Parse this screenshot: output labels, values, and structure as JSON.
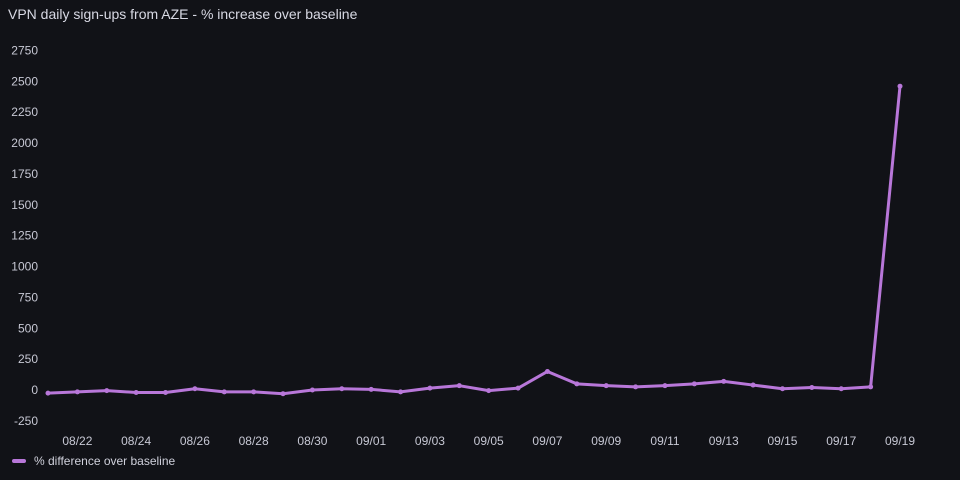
{
  "panel": {
    "title": "VPN daily sign-ups from AZE - % increase over baseline"
  },
  "chart_data": {
    "type": "line",
    "title": "VPN daily sign-ups from AZE - % increase over baseline",
    "xlabel": "",
    "ylabel": "",
    "ylim": [
      -300,
      2900
    ],
    "y_ticks": [
      -250,
      0,
      250,
      500,
      750,
      1000,
      1250,
      1500,
      1750,
      2000,
      2250,
      2500,
      2750
    ],
    "x_ticks": [
      "08/22",
      "08/24",
      "08/26",
      "08/28",
      "08/30",
      "09/01",
      "09/03",
      "09/05",
      "09/07",
      "09/09",
      "09/11",
      "09/13",
      "09/15",
      "09/17",
      "09/19"
    ],
    "grid": false,
    "legend_position": "bottom-left",
    "series": [
      {
        "name": "% difference over baseline",
        "color": "#b877d9",
        "x": [
          "08/21",
          "08/22",
          "08/23",
          "08/24",
          "08/25",
          "08/26",
          "08/27",
          "08/28",
          "08/29",
          "08/30",
          "08/31",
          "09/01",
          "09/02",
          "09/03",
          "09/04",
          "09/05",
          "09/06",
          "09/07",
          "09/08",
          "09/09",
          "09/10",
          "09/11",
          "09/12",
          "09/13",
          "09/14",
          "09/15",
          "09/16",
          "09/17",
          "09/18",
          "09/19"
        ],
        "values": [
          -25,
          -15,
          -5,
          -20,
          -20,
          10,
          -15,
          -15,
          -30,
          0,
          10,
          5,
          -15,
          15,
          35,
          -5,
          15,
          150,
          50,
          35,
          25,
          35,
          50,
          70,
          40,
          10,
          20,
          10,
          25,
          2460
        ]
      }
    ]
  }
}
